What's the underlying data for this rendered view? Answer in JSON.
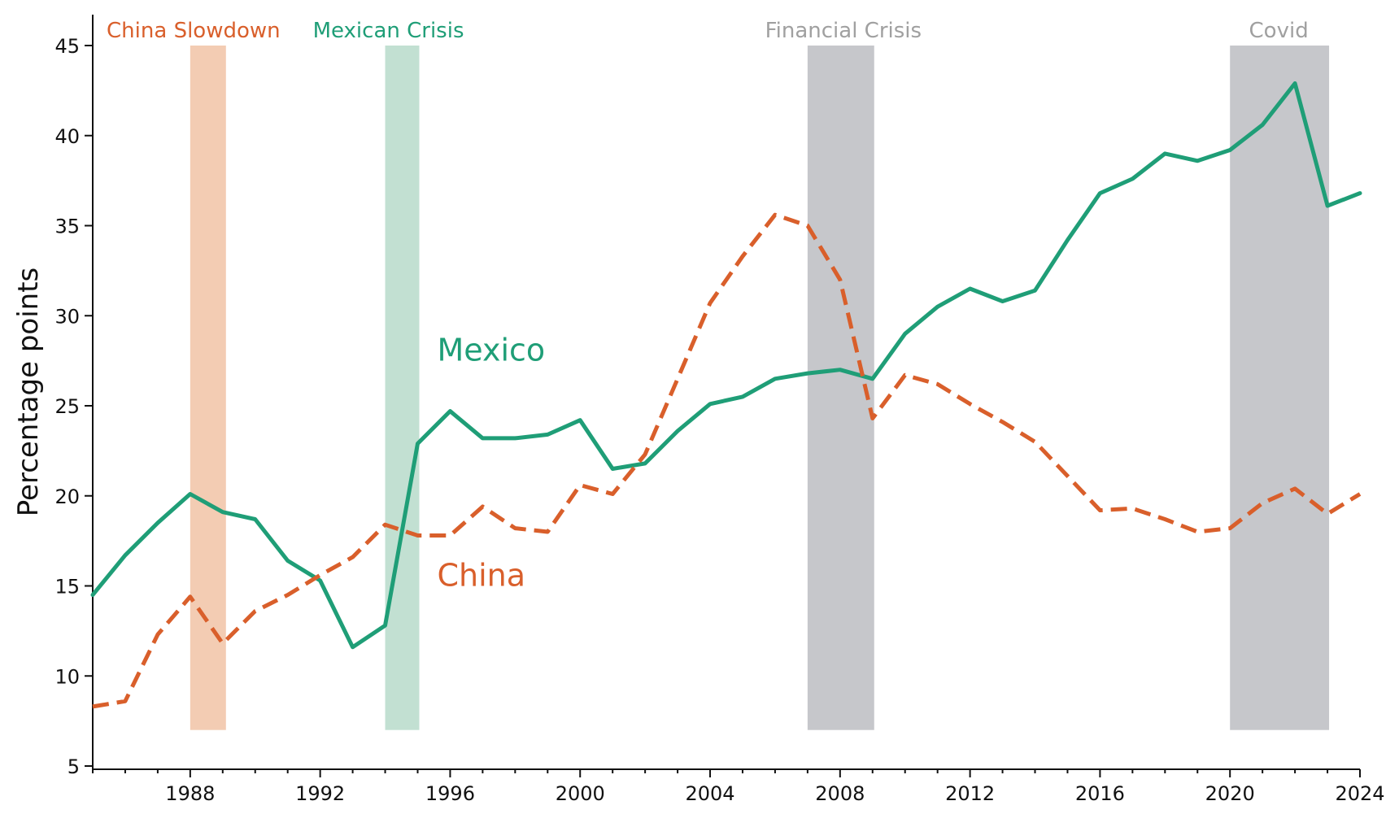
{
  "chart_data": {
    "type": "line",
    "title": "",
    "xlabel": "",
    "ylabel": "Percentage points",
    "xlim": [
      1985,
      2024
    ],
    "ylim": [
      5,
      45
    ],
    "grid": false,
    "x_ticks": [
      1988,
      1992,
      1996,
      2000,
      2004,
      2008,
      2012,
      2016,
      2020,
      2024
    ],
    "y_ticks": [
      5,
      10,
      15,
      20,
      25,
      30,
      35,
      40,
      45
    ],
    "x": [
      1985,
      1986,
      1987,
      1988,
      1989,
      1990,
      1991,
      1992,
      1993,
      1994,
      1995,
      1996,
      1997,
      1998,
      1999,
      2000,
      2001,
      2002,
      2003,
      2004,
      2005,
      2006,
      2007,
      2008,
      2009,
      2010,
      2011,
      2012,
      2013,
      2014,
      2015,
      2016,
      2017,
      2018,
      2019,
      2020,
      2021,
      2022,
      2023,
      2024
    ],
    "series": [
      {
        "name": "Mexico",
        "color": "#1f9e77",
        "style": "solid",
        "values": [
          14.5,
          16.7,
          18.5,
          20.1,
          19.1,
          18.7,
          16.4,
          15.3,
          11.6,
          12.8,
          22.9,
          24.7,
          23.2,
          23.2,
          23.4,
          24.2,
          21.5,
          21.8,
          23.6,
          25.1,
          25.5,
          26.5,
          26.8,
          27.0,
          26.5,
          29.0,
          30.5,
          31.5,
          30.8,
          31.4,
          34.2,
          36.8,
          37.6,
          39.0,
          38.6,
          39.2,
          40.6,
          42.9,
          36.1,
          36.8
        ],
        "label_x": 1995.6,
        "label_y": 27.5
      },
      {
        "name": "China",
        "color": "#d95f2b",
        "style": "dashed",
        "values": [
          8.3,
          8.6,
          12.3,
          14.4,
          11.8,
          13.6,
          14.5,
          15.6,
          16.6,
          18.4,
          17.8,
          17.8,
          19.4,
          18.2,
          18.0,
          20.6,
          20.1,
          22.3,
          26.5,
          30.7,
          33.3,
          35.6,
          35.0,
          32.0,
          24.3,
          26.7,
          26.2,
          25.1,
          24.1,
          23.0,
          21.1,
          19.2,
          19.3,
          18.7,
          18.0,
          18.2,
          19.6,
          20.4,
          19.0,
          20.1
        ],
        "label_x": 1995.6,
        "label_y": 15.0
      }
    ],
    "shaded_periods": [
      {
        "label": "China Slowdown",
        "start": 1988,
        "end": 1989.1,
        "fill": "#f3ccb3",
        "text_color": "#d95f2b",
        "label_center": 1988.1
      },
      {
        "label": "Mexican Crisis",
        "start": 1994,
        "end": 1995.05,
        "fill": "#c2e0d2",
        "text_color": "#1f9e77",
        "label_center": 1994.1
      },
      {
        "label": "Financial Crisis",
        "start": 2007,
        "end": 2009.05,
        "fill": "#c6c7cb",
        "text_color": "#a0a0a0",
        "label_center": 2008.1
      },
      {
        "label": "Covid",
        "start": 2020,
        "end": 2023.05,
        "fill": "#c6c7cb",
        "text_color": "#a0a0a0",
        "label_center": 2021.5
      }
    ],
    "shade_y_range": [
      7,
      45
    ]
  }
}
